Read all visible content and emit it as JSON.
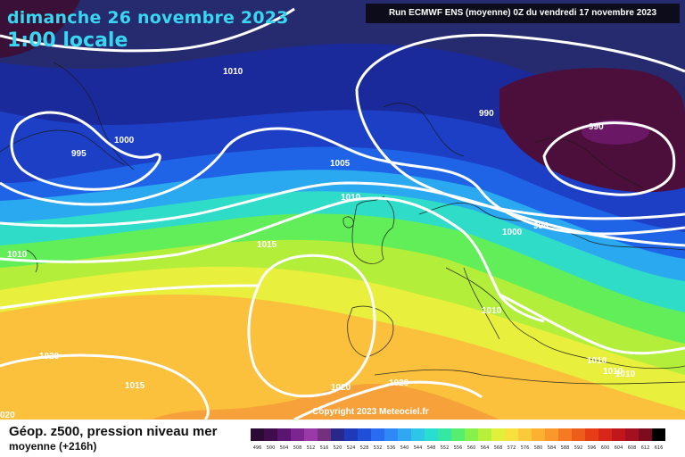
{
  "header": {
    "date_line": "dimanche 26 novembre 2023",
    "time_line": "1:00 locale",
    "run_info": "Run ECMWF ENS (moyenne) 0Z du vendredi 17 novembre 2023"
  },
  "footer": {
    "title": "Géop. z500, pression niveau mer",
    "subtitle": "moyenne  (+216h)",
    "copyright": "Copyright 2023 Meteociel.fr"
  },
  "scale_ticks": [
    "496",
    "500",
    "504",
    "508",
    "512",
    "516",
    "520",
    "524",
    "528",
    "532",
    "536",
    "540",
    "544",
    "548",
    "552",
    "556",
    "560",
    "564",
    "568",
    "572",
    "576",
    "580",
    "584",
    "588",
    "592",
    "596",
    "600",
    "604",
    "608",
    "612",
    "616"
  ],
  "scale_colors": [
    "#2b0a33",
    "#3f0d4c",
    "#5a1570",
    "#7c2490",
    "#9a3aa8",
    "#74307f",
    "#272889",
    "#1e3ab8",
    "#1f4fd6",
    "#2a6cf0",
    "#2f89f5",
    "#31a7f2",
    "#2dc5e8",
    "#29ddd0",
    "#34e8a4",
    "#55ee6e",
    "#86f04c",
    "#b7f03a",
    "#e1f03a",
    "#f7e23d",
    "#fbc93a",
    "#fcb131",
    "#fb982b",
    "#f57a23",
    "#ee5c1c",
    "#e63d17",
    "#d8261a",
    "#c2161d",
    "#a51020",
    "#7d0c1e",
    "#000000"
  ],
  "isobar_labels": [
    "1010",
    "1000",
    "995",
    "1005",
    "1010",
    "990",
    "990",
    "995",
    "1000",
    "1015",
    "1010",
    "1010",
    "1020",
    "1015",
    "1020",
    "1020",
    "1010",
    "1010",
    "1010",
    "020"
  ],
  "colors": {
    "title": "#38d6f0",
    "isobar": "#ffffff"
  }
}
